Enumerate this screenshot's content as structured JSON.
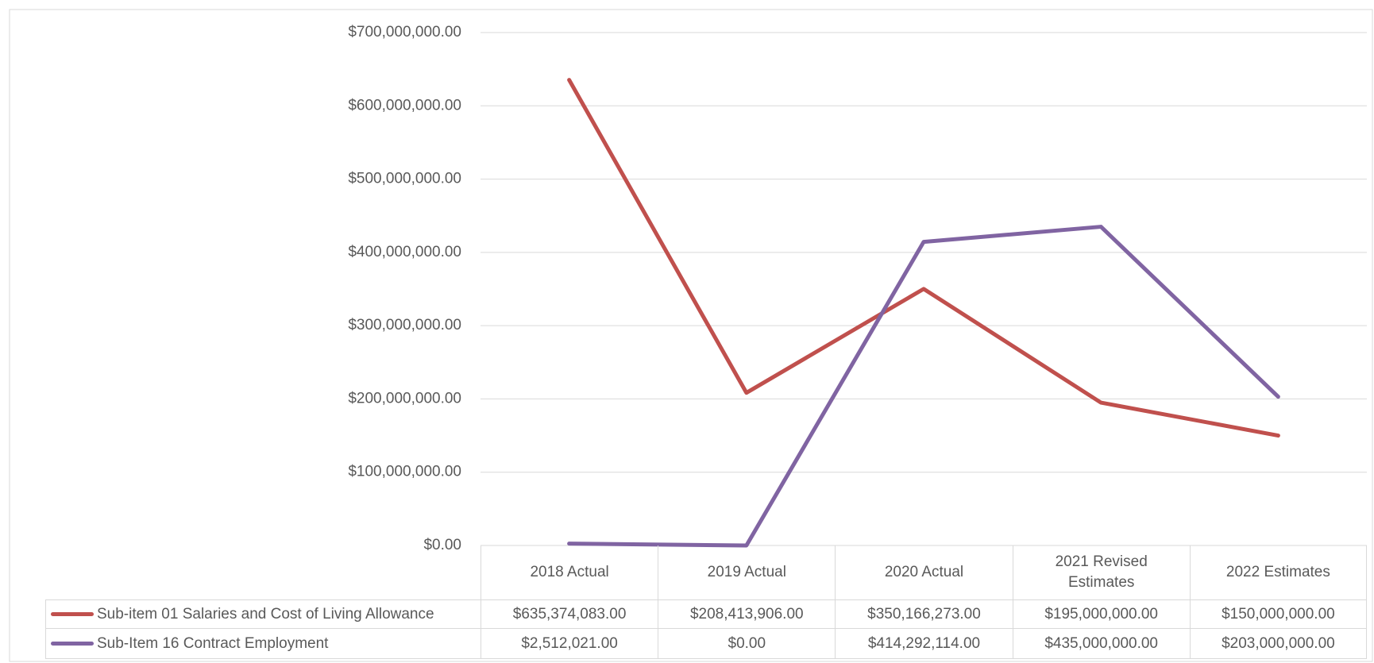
{
  "chart_data": {
    "type": "line",
    "categories": [
      "2018 Actual",
      "2019 Actual",
      "2020 Actual",
      "2021 Revised Estimates",
      "2022 Estimates"
    ],
    "series": [
      {
        "name": "Sub-item 01 Salaries and Cost of Living Allowance",
        "color": "#c0504d",
        "values": [
          635374083,
          208413906,
          350166273,
          195000000,
          150000000
        ],
        "value_labels": [
          "$635,374,083.00",
          "$208,413,906.00",
          "$350,166,273.00",
          "$195,000,000.00",
          "$150,000,000.00"
        ]
      },
      {
        "name": "Sub-Item 16 Contract Employment",
        "color": "#8064a2",
        "values": [
          2512021,
          0,
          414292114,
          435000000,
          203000000
        ],
        "value_labels": [
          "$2,512,021.00",
          "$0.00",
          "$414,292,114.00",
          "$435,000,000.00",
          "$203,000,000.00"
        ]
      }
    ],
    "ylim": [
      0,
      700000000
    ],
    "yticks": [
      {
        "value": 0,
        "label": "$0.00"
      },
      {
        "value": 100000000,
        "label": "$100,000,000.00"
      },
      {
        "value": 200000000,
        "label": "$200,000,000.00"
      },
      {
        "value": 300000000,
        "label": "$300,000,000.00"
      },
      {
        "value": 400000000,
        "label": "$400,000,000.00"
      },
      {
        "value": 500000000,
        "label": "$500,000,000.00"
      },
      {
        "value": 600000000,
        "label": "$600,000,000.00"
      },
      {
        "value": 700000000,
        "label": "$700,000,000.00"
      }
    ],
    "grid": true
  }
}
